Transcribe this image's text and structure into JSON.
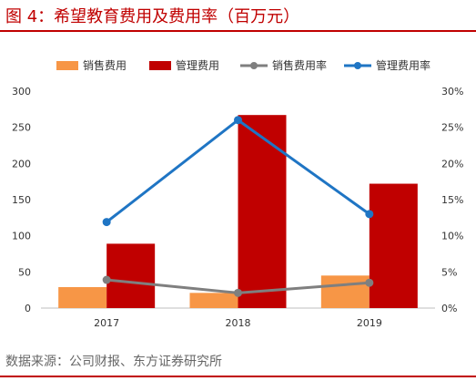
{
  "title": "图 4：希望教育费用及费用率（百万元）",
  "source": "数据来源：公司财报、东方证券研究所",
  "colors": {
    "accent": "#c00000",
    "sales_expense": "#f79646",
    "admin_expense": "#c00000",
    "sales_rate": "#7f7f7f",
    "admin_rate": "#1f75c4"
  },
  "chart_data": {
    "type": "bar",
    "categories": [
      "2017",
      "2018",
      "2019"
    ],
    "series": [
      {
        "name": "销售费用",
        "kind": "bar",
        "axis": "left",
        "color": "#f79646",
        "values": [
          29,
          21,
          45
        ]
      },
      {
        "name": "管理费用",
        "kind": "bar",
        "axis": "left",
        "color": "#c00000",
        "values": [
          89,
          267,
          172
        ]
      },
      {
        "name": "销售费用率",
        "kind": "line",
        "axis": "right",
        "color": "#7f7f7f",
        "values": [
          0.039,
          0.021,
          0.035
        ]
      },
      {
        "name": "管理费用率",
        "kind": "line",
        "axis": "right",
        "color": "#1f75c4",
        "values": [
          0.119,
          0.26,
          0.13
        ]
      }
    ],
    "y_left": {
      "min": 0,
      "max": 300,
      "ticks": [
        "0",
        "50",
        "100",
        "150",
        "200",
        "250",
        "300"
      ]
    },
    "y_right": {
      "min": 0,
      "max": 0.3,
      "ticks": [
        "0%",
        "5%",
        "10%",
        "15%",
        "20%",
        "25%",
        "30%"
      ]
    },
    "grid": false,
    "legend_position": "top"
  }
}
